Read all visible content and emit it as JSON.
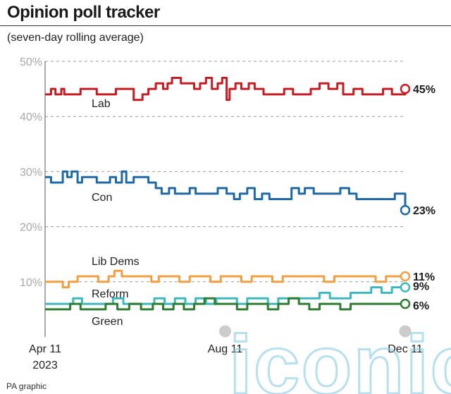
{
  "header": {
    "title": "Opinion poll tracker",
    "subtitle": "(seven-day rolling average)"
  },
  "source": "PA graphic",
  "watermark": {
    "text": "iconic",
    "color": "#7ec8e3"
  },
  "chart_data": {
    "type": "line",
    "title": "Opinion poll tracker",
    "subtitle": "(seven-day rolling average)",
    "xlabel": "",
    "ylabel": "",
    "ylim": [
      0,
      50
    ],
    "yticks": [
      10,
      20,
      30,
      40,
      50
    ],
    "ytick_labels": [
      "10%",
      "20%",
      "30%",
      "40%",
      "50%"
    ],
    "xlim": [
      "2023-04-11",
      "2023-12-11"
    ],
    "xticks": [
      "2023-04-11",
      "2023-08-11",
      "2023-12-11"
    ],
    "xtick_labels": [
      "Apr 11\n2023",
      "Aug 11",
      "Dec 11"
    ],
    "grid": true,
    "legend": "inline labels",
    "series": [
      {
        "name": "Lab",
        "color": "#c41d23",
        "end_label": "45%",
        "points": [
          [
            "2023-04-11",
            44
          ],
          [
            "2023-04-15",
            45
          ],
          [
            "2023-04-18",
            44
          ],
          [
            "2023-04-22",
            45
          ],
          [
            "2023-04-24",
            44
          ],
          [
            "2023-05-01",
            44
          ],
          [
            "2023-05-05",
            45
          ],
          [
            "2023-05-12",
            45
          ],
          [
            "2023-05-16",
            44
          ],
          [
            "2023-05-25",
            44
          ],
          [
            "2023-05-29",
            45
          ],
          [
            "2023-06-05",
            45
          ],
          [
            "2023-06-10",
            43
          ],
          [
            "2023-06-16",
            44
          ],
          [
            "2023-06-20",
            45
          ],
          [
            "2023-06-25",
            46
          ],
          [
            "2023-06-30",
            45
          ],
          [
            "2023-07-03",
            46
          ],
          [
            "2023-07-06",
            47
          ],
          [
            "2023-07-12",
            46
          ],
          [
            "2023-07-17",
            46
          ],
          [
            "2023-07-21",
            45
          ],
          [
            "2023-07-25",
            46
          ],
          [
            "2023-07-29",
            47
          ],
          [
            "2023-08-02",
            45
          ],
          [
            "2023-08-06",
            46
          ],
          [
            "2023-08-09",
            47
          ],
          [
            "2023-08-12",
            43
          ],
          [
            "2023-08-14",
            45
          ],
          [
            "2023-08-18",
            46
          ],
          [
            "2023-08-22",
            45
          ],
          [
            "2023-08-27",
            46
          ],
          [
            "2023-08-31",
            45
          ],
          [
            "2023-09-06",
            44
          ],
          [
            "2023-09-14",
            44
          ],
          [
            "2023-09-20",
            45
          ],
          [
            "2023-09-26",
            44
          ],
          [
            "2023-10-02",
            44
          ],
          [
            "2023-10-08",
            45
          ],
          [
            "2023-10-14",
            46
          ],
          [
            "2023-10-20",
            45
          ],
          [
            "2023-10-26",
            46
          ],
          [
            "2023-10-30",
            44
          ],
          [
            "2023-11-06",
            45
          ],
          [
            "2023-11-12",
            44
          ],
          [
            "2023-11-20",
            44
          ],
          [
            "2023-11-26",
            45
          ],
          [
            "2023-12-02",
            44
          ],
          [
            "2023-12-11",
            45
          ]
        ]
      },
      {
        "name": "Con",
        "color": "#1f6aa5",
        "end_label": "23%",
        "points": [
          [
            "2023-04-11",
            29
          ],
          [
            "2023-04-15",
            28
          ],
          [
            "2023-04-20",
            28
          ],
          [
            "2023-04-23",
            30
          ],
          [
            "2023-04-26",
            29
          ],
          [
            "2023-04-29",
            30
          ],
          [
            "2023-05-03",
            28
          ],
          [
            "2023-05-06",
            29
          ],
          [
            "2023-05-12",
            29
          ],
          [
            "2023-05-16",
            28
          ],
          [
            "2023-05-20",
            28
          ],
          [
            "2023-05-25",
            29
          ],
          [
            "2023-05-29",
            28
          ],
          [
            "2023-06-02",
            30
          ],
          [
            "2023-06-05",
            28
          ],
          [
            "2023-06-10",
            29
          ],
          [
            "2023-06-16",
            29
          ],
          [
            "2023-06-20",
            28
          ],
          [
            "2023-06-25",
            27
          ],
          [
            "2023-06-29",
            26
          ],
          [
            "2023-07-04",
            27
          ],
          [
            "2023-07-08",
            26
          ],
          [
            "2023-07-14",
            26
          ],
          [
            "2023-07-18",
            27
          ],
          [
            "2023-07-22",
            26
          ],
          [
            "2023-07-28",
            26
          ],
          [
            "2023-08-02",
            26
          ],
          [
            "2023-08-06",
            27
          ],
          [
            "2023-08-12",
            26
          ],
          [
            "2023-08-17",
            25
          ],
          [
            "2023-08-21",
            26
          ],
          [
            "2023-08-26",
            27
          ],
          [
            "2023-08-31",
            25
          ],
          [
            "2023-09-05",
            26
          ],
          [
            "2023-09-10",
            25
          ],
          [
            "2023-09-14",
            25
          ],
          [
            "2023-09-20",
            25
          ],
          [
            "2023-09-25",
            27
          ],
          [
            "2023-09-30",
            26
          ],
          [
            "2023-10-04",
            27
          ],
          [
            "2023-10-10",
            26
          ],
          [
            "2023-10-16",
            26
          ],
          [
            "2023-10-22",
            26
          ],
          [
            "2023-10-28",
            27
          ],
          [
            "2023-11-03",
            26
          ],
          [
            "2023-11-08",
            25
          ],
          [
            "2023-11-15",
            25
          ],
          [
            "2023-11-22",
            25
          ],
          [
            "2023-11-28",
            25
          ],
          [
            "2023-12-04",
            26
          ],
          [
            "2023-12-11",
            23
          ]
        ]
      },
      {
        "name": "Lib Dems",
        "color": "#f0a043",
        "end_label": "11%",
        "points": [
          [
            "2023-04-11",
            10
          ],
          [
            "2023-04-18",
            10
          ],
          [
            "2023-04-23",
            9
          ],
          [
            "2023-04-27",
            10
          ],
          [
            "2023-05-03",
            11
          ],
          [
            "2023-05-10",
            11
          ],
          [
            "2023-05-17",
            10
          ],
          [
            "2023-05-24",
            11
          ],
          [
            "2023-05-28",
            12
          ],
          [
            "2023-06-02",
            11
          ],
          [
            "2023-06-08",
            11
          ],
          [
            "2023-06-15",
            11
          ],
          [
            "2023-06-22",
            10
          ],
          [
            "2023-06-27",
            11
          ],
          [
            "2023-07-04",
            11
          ],
          [
            "2023-07-11",
            10
          ],
          [
            "2023-07-18",
            11
          ],
          [
            "2023-07-25",
            11
          ],
          [
            "2023-08-01",
            10
          ],
          [
            "2023-08-08",
            11
          ],
          [
            "2023-08-15",
            11
          ],
          [
            "2023-08-22",
            10
          ],
          [
            "2023-08-29",
            11
          ],
          [
            "2023-09-05",
            11
          ],
          [
            "2023-09-12",
            10
          ],
          [
            "2023-09-19",
            11
          ],
          [
            "2023-09-26",
            11
          ],
          [
            "2023-10-03",
            11
          ],
          [
            "2023-10-10",
            11
          ],
          [
            "2023-10-17",
            10
          ],
          [
            "2023-10-24",
            11
          ],
          [
            "2023-10-31",
            11
          ],
          [
            "2023-11-07",
            11
          ],
          [
            "2023-11-14",
            11
          ],
          [
            "2023-11-21",
            10
          ],
          [
            "2023-11-28",
            11
          ],
          [
            "2023-12-04",
            11
          ],
          [
            "2023-12-11",
            11
          ]
        ]
      },
      {
        "name": "Reform",
        "color": "#3db9bd",
        "end_label": "9%",
        "points": [
          [
            "2023-04-11",
            6
          ],
          [
            "2023-04-18",
            6
          ],
          [
            "2023-04-24",
            6
          ],
          [
            "2023-04-30",
            7
          ],
          [
            "2023-05-06",
            6
          ],
          [
            "2023-05-13",
            6
          ],
          [
            "2023-05-20",
            6
          ],
          [
            "2023-05-27",
            7
          ],
          [
            "2023-06-03",
            6
          ],
          [
            "2023-06-10",
            6
          ],
          [
            "2023-06-17",
            6
          ],
          [
            "2023-06-24",
            7
          ],
          [
            "2023-07-01",
            6
          ],
          [
            "2023-07-08",
            7
          ],
          [
            "2023-07-15",
            6
          ],
          [
            "2023-07-22",
            7
          ],
          [
            "2023-07-29",
            6
          ],
          [
            "2023-08-05",
            7
          ],
          [
            "2023-08-12",
            7
          ],
          [
            "2023-08-19",
            6
          ],
          [
            "2023-08-26",
            7
          ],
          [
            "2023-09-02",
            7
          ],
          [
            "2023-09-09",
            6
          ],
          [
            "2023-09-16",
            7
          ],
          [
            "2023-09-23",
            7
          ],
          [
            "2023-09-30",
            7
          ],
          [
            "2023-10-07",
            7
          ],
          [
            "2023-10-14",
            8
          ],
          [
            "2023-10-21",
            7
          ],
          [
            "2023-10-28",
            7
          ],
          [
            "2023-11-04",
            8
          ],
          [
            "2023-11-11",
            8
          ],
          [
            "2023-11-18",
            9
          ],
          [
            "2023-11-25",
            8
          ],
          [
            "2023-12-02",
            9
          ],
          [
            "2023-12-11",
            9
          ]
        ]
      },
      {
        "name": "Green",
        "color": "#2f7d32",
        "end_label": "6%",
        "points": [
          [
            "2023-04-11",
            5
          ],
          [
            "2023-04-20",
            5
          ],
          [
            "2023-04-28",
            6
          ],
          [
            "2023-05-05",
            5
          ],
          [
            "2023-05-14",
            5
          ],
          [
            "2023-05-22",
            6
          ],
          [
            "2023-05-30",
            5
          ],
          [
            "2023-06-07",
            6
          ],
          [
            "2023-06-15",
            5
          ],
          [
            "2023-06-23",
            6
          ],
          [
            "2023-06-30",
            5
          ],
          [
            "2023-07-07",
            6
          ],
          [
            "2023-07-14",
            5
          ],
          [
            "2023-07-21",
            6
          ],
          [
            "2023-07-28",
            7
          ],
          [
            "2023-08-04",
            6
          ],
          [
            "2023-08-12",
            6
          ],
          [
            "2023-08-19",
            5
          ],
          [
            "2023-08-26",
            6
          ],
          [
            "2023-09-02",
            6
          ],
          [
            "2023-09-09",
            5
          ],
          [
            "2023-09-16",
            6
          ],
          [
            "2023-09-23",
            7
          ],
          [
            "2023-09-30",
            6
          ],
          [
            "2023-10-07",
            5
          ],
          [
            "2023-10-14",
            6
          ],
          [
            "2023-10-21",
            6
          ],
          [
            "2023-10-28",
            5
          ],
          [
            "2023-11-04",
            6
          ],
          [
            "2023-11-11",
            6
          ],
          [
            "2023-11-18",
            6
          ],
          [
            "2023-11-25",
            6
          ],
          [
            "2023-12-02",
            6
          ],
          [
            "2023-12-11",
            6
          ]
        ]
      }
    ]
  }
}
